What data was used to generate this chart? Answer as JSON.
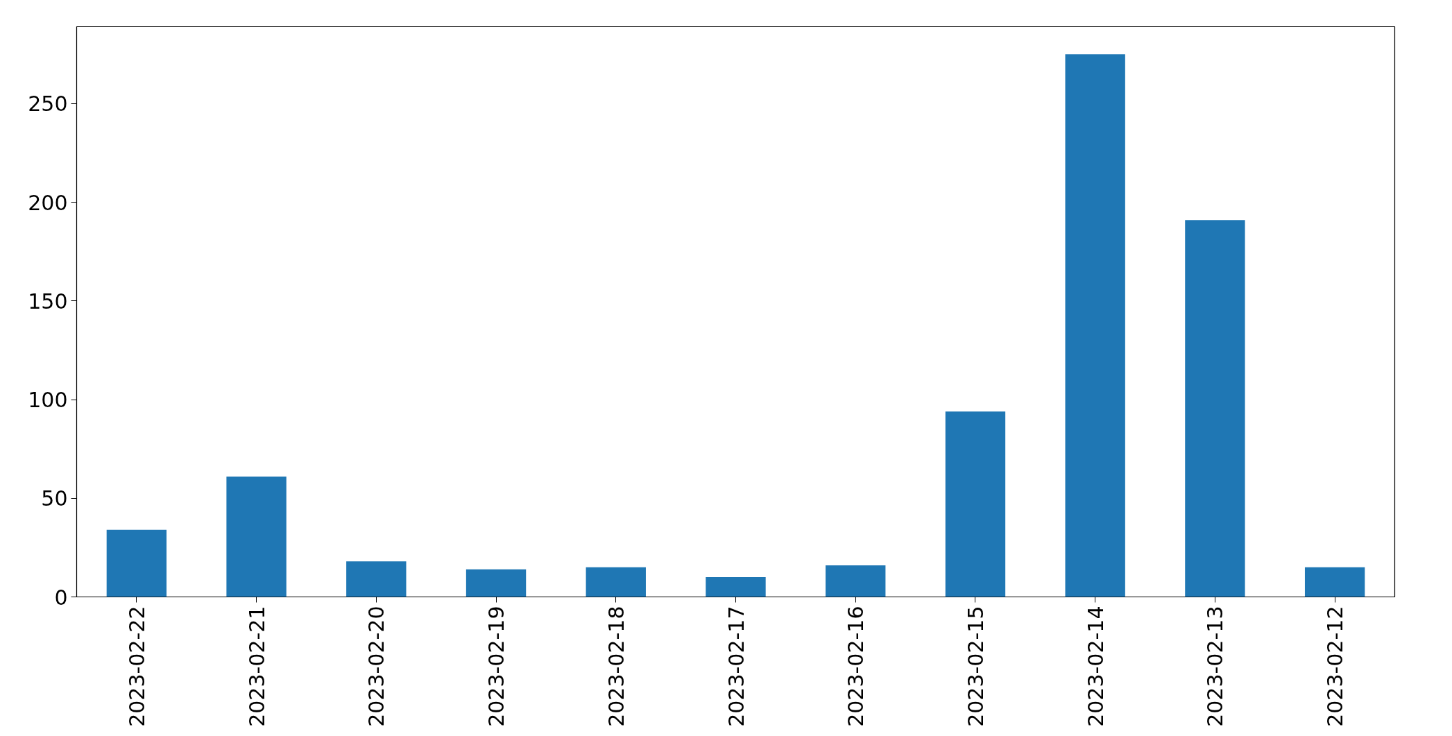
{
  "chart_data": {
    "type": "bar",
    "categories": [
      "2023-02-22",
      "2023-02-21",
      "2023-02-20",
      "2023-02-19",
      "2023-02-18",
      "2023-02-17",
      "2023-02-16",
      "2023-02-15",
      "2023-02-14",
      "2023-02-13",
      "2023-02-12"
    ],
    "values": [
      34,
      61,
      18,
      14,
      15,
      10,
      16,
      94,
      275,
      191,
      15
    ],
    "color": "#1f77b4",
    "ylim": [
      0,
      289
    ],
    "yticks": [
      0,
      50,
      100,
      150,
      200,
      250
    ]
  }
}
